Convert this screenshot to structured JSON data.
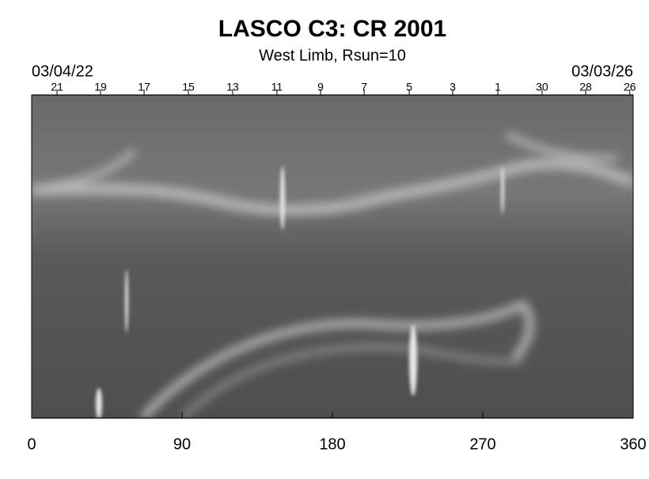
{
  "chart_data": {
    "type": "image",
    "title": "LASCO C3: CR 2001",
    "subtitle": "West Limb, Rsun=10",
    "start_date": "03/04/22",
    "end_date": "03/03/26",
    "xlim": [
      0,
      360
    ],
    "xticks": [
      0,
      90,
      180,
      270,
      360
    ],
    "x2ticks": [
      {
        "value": 15.2,
        "label": "21"
      },
      {
        "value": 41.2,
        "label": "19"
      },
      {
        "value": 67.3,
        "label": "17"
      },
      {
        "value": 93.8,
        "label": "15"
      },
      {
        "value": 120.3,
        "label": "13"
      },
      {
        "value": 146.8,
        "label": "11"
      },
      {
        "value": 172.9,
        "label": "9"
      },
      {
        "value": 199,
        "label": "7"
      },
      {
        "value": 226,
        "label": "5"
      },
      {
        "value": 252,
        "label": "3"
      },
      {
        "value": 279,
        "label": "1"
      },
      {
        "value": 305.5,
        "label": "30"
      },
      {
        "value": 331.6,
        "label": "28"
      },
      {
        "value": 358,
        "label": "26"
      }
    ]
  }
}
